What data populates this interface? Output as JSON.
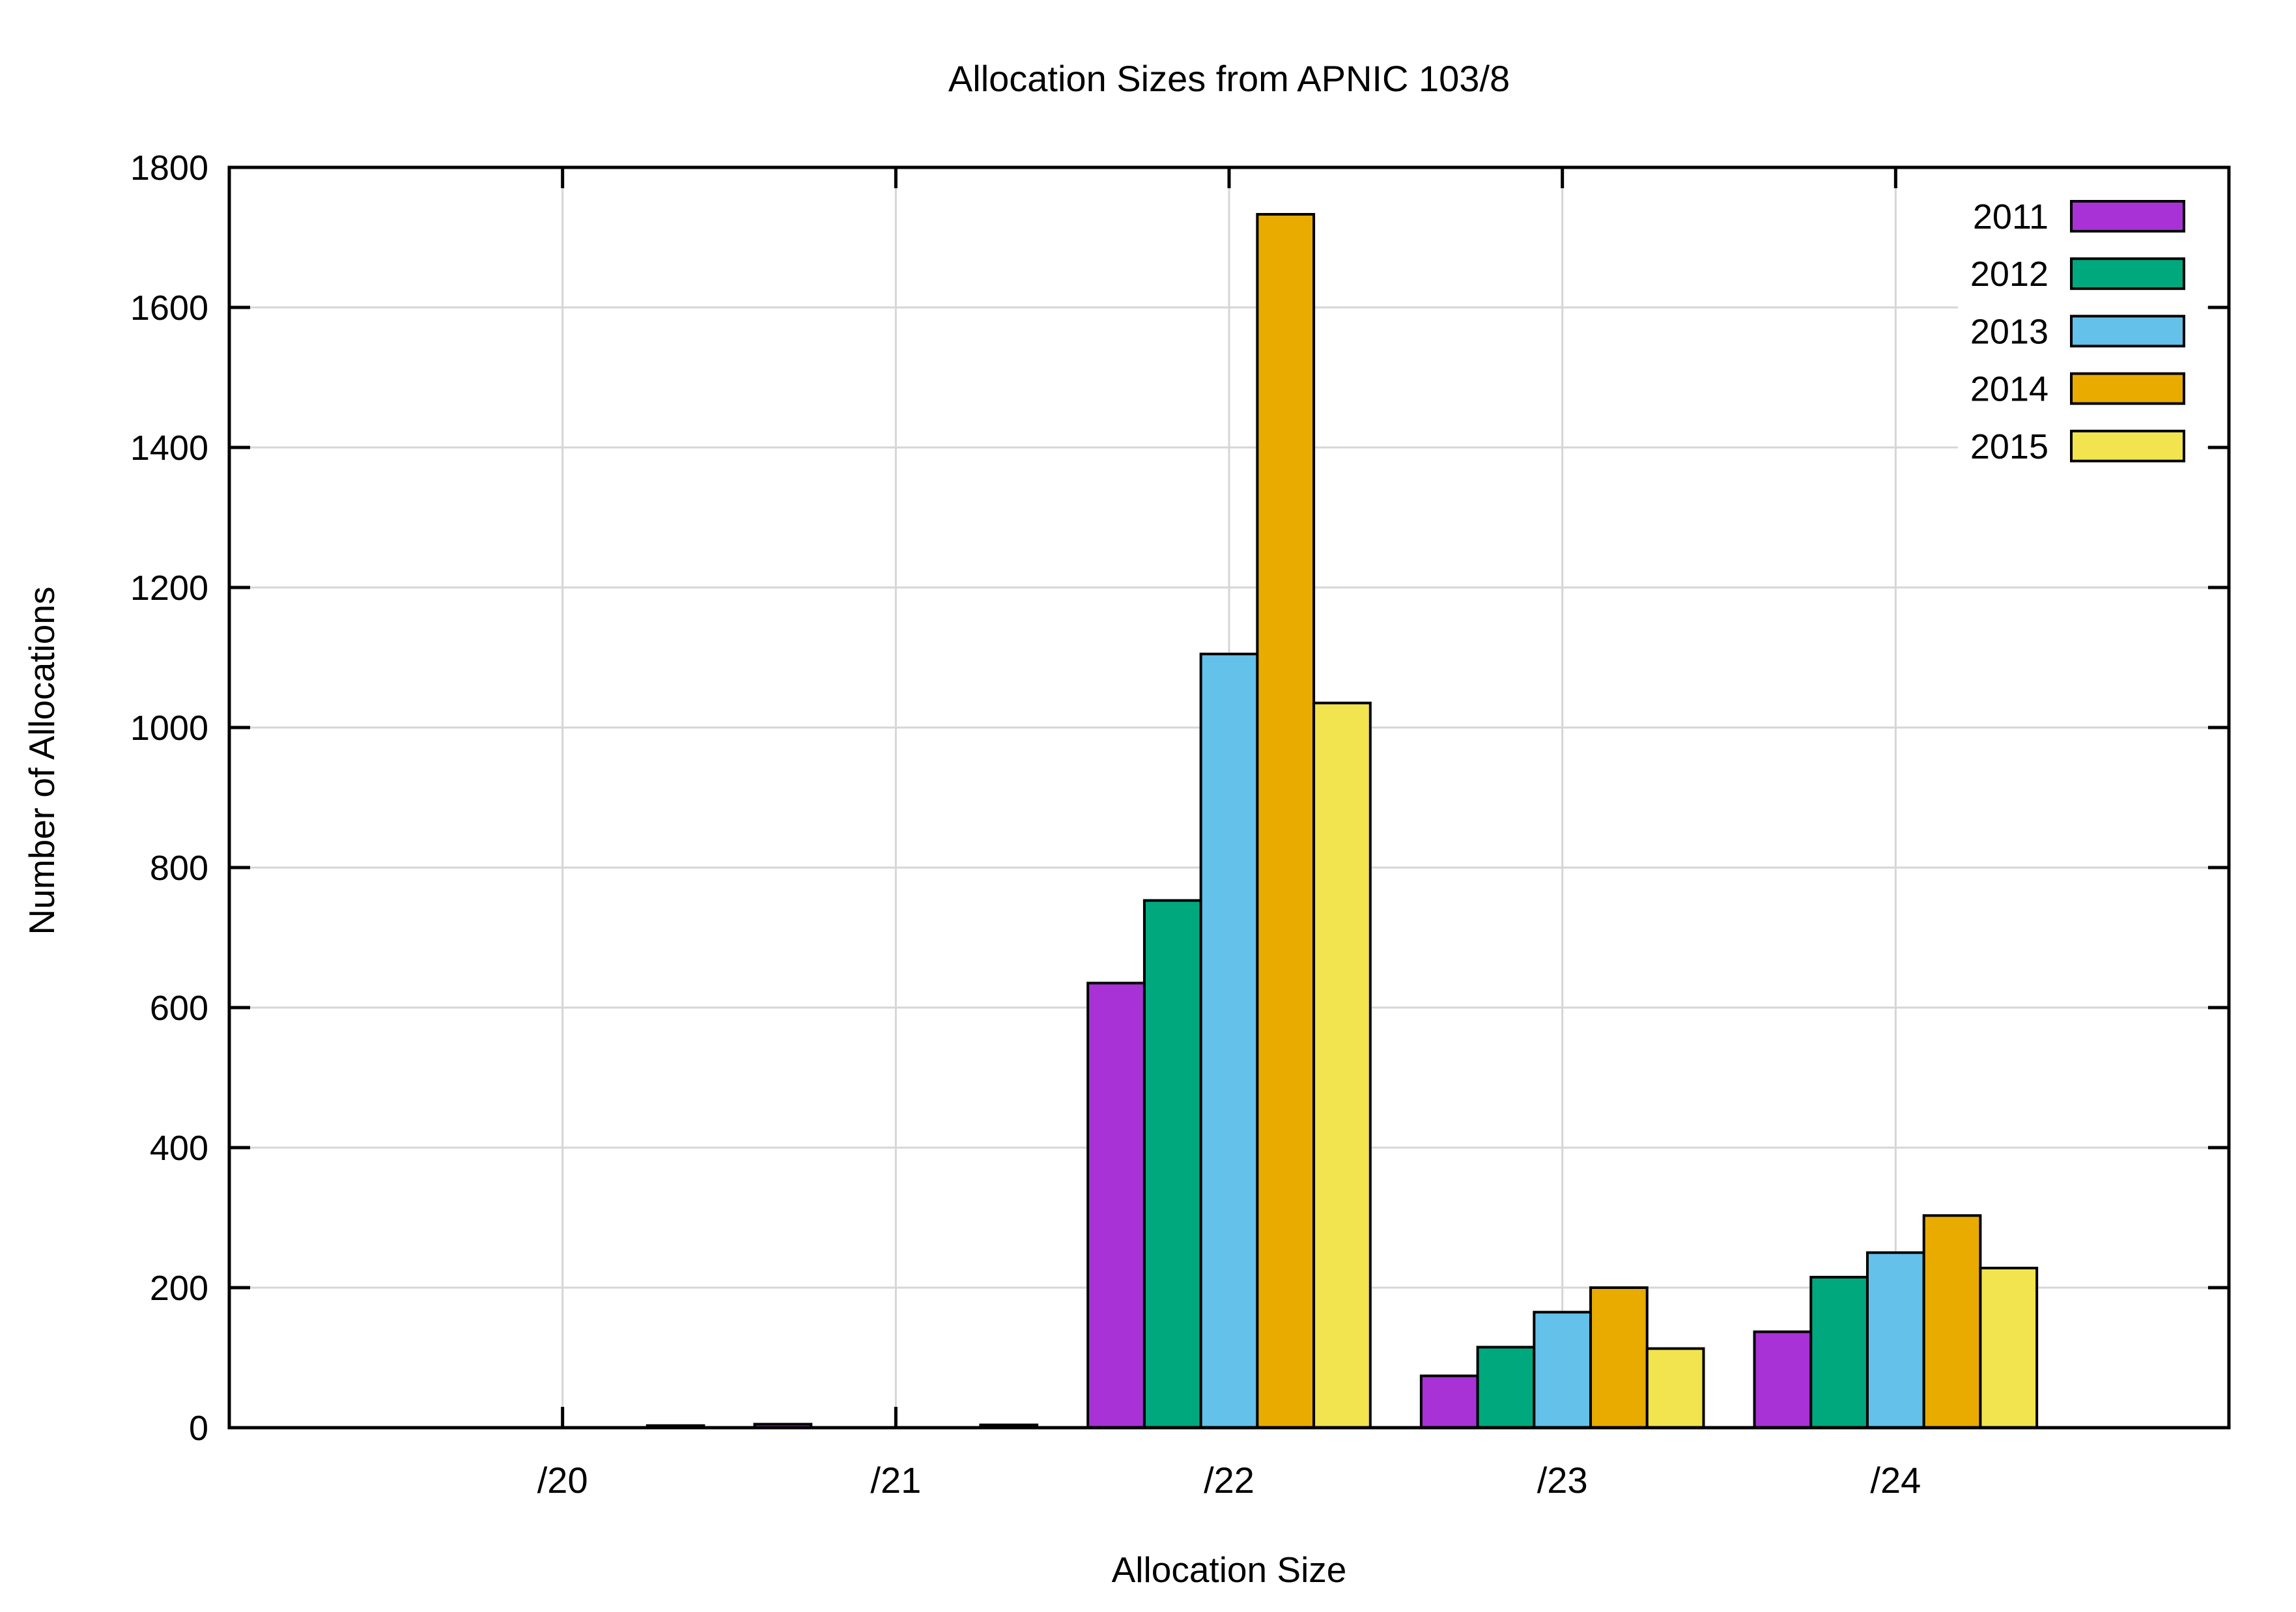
{
  "chart_data": {
    "type": "bar",
    "title": "Allocation Sizes from APNIC 103/8",
    "xlabel": "Allocation Size",
    "ylabel": "Number of Allocations",
    "categories": [
      "/20",
      "/21",
      "/22",
      "/23",
      "/24"
    ],
    "series": [
      {
        "name": "2011",
        "color": "#a832d6",
        "values": [
          0,
          5,
          635,
          74,
          137
        ]
      },
      {
        "name": "2012",
        "color": "#00a87e",
        "values": [
          0,
          0,
          753,
          115,
          215
        ]
      },
      {
        "name": "2013",
        "color": "#63c1ea",
        "values": [
          0,
          0,
          1105,
          165,
          250
        ]
      },
      {
        "name": "2014",
        "color": "#e9ab00",
        "values": [
          0,
          0,
          1733,
          200,
          303
        ]
      },
      {
        "name": "2015",
        "color": "#f2e44f",
        "values": [
          3,
          4,
          1035,
          113,
          228
        ]
      }
    ],
    "ylim": [
      0,
      1800
    ],
    "ytick_step": 200,
    "ytick_labels": [
      "0",
      "200",
      "400",
      "600",
      "800",
      "1000",
      "1200",
      "1400",
      "1600",
      "1800"
    ],
    "grid": true,
    "legend_position": "top-right-inside"
  },
  "styling": {
    "background": "#ffffff",
    "axis_color": "#000000",
    "grid_color": "#d6d6d6",
    "bar_border_color": "#000000",
    "text_color": "#000000"
  }
}
